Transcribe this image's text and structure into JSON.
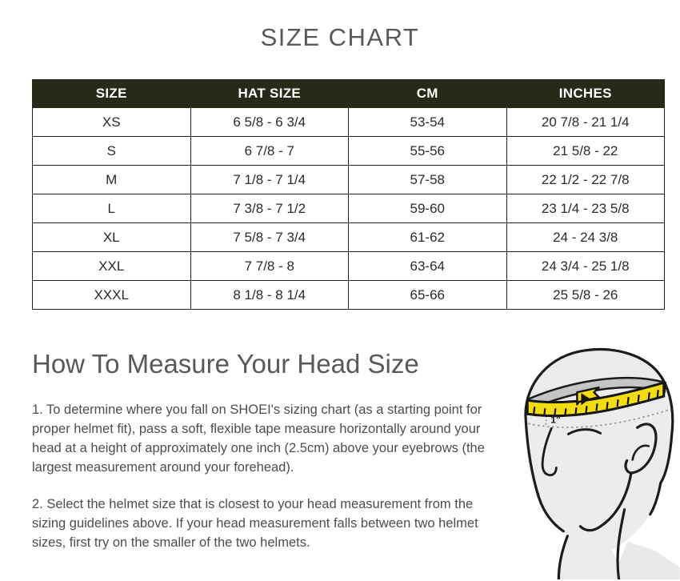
{
  "page": {
    "title": "SIZE CHART"
  },
  "size_chart": {
    "columns": [
      "SIZE",
      "HAT SIZE",
      "CM",
      "INCHES"
    ],
    "rows": [
      [
        "XS",
        "6 5/8 - 6 3/4",
        "53-54",
        "20 7/8 - 21 1/4"
      ],
      [
        "S",
        "6 7/8 - 7",
        "55-56",
        "21 5/8 - 22"
      ],
      [
        "M",
        "7 1/8 - 7 1/4",
        "57-58",
        "22 1/2 - 22 7/8"
      ],
      [
        "L",
        "7 3/8 - 7 1/2",
        "59-60",
        "23 1/4 - 23 5/8"
      ],
      [
        "XL",
        "7 5/8 - 7 3/4",
        "61-62",
        "24 - 24 3/8"
      ],
      [
        "XXL",
        "7 7/8 - 8",
        "63-64",
        "24 3/4 - 25 1/8"
      ],
      [
        "XXXL",
        "8 1/8 - 8 1/4",
        "65-66",
        "25 5/8 - 26"
      ]
    ]
  },
  "measure_section": {
    "heading": "How To Measure Your Head Size",
    "paragraphs": [
      "1. To determine where you fall on SHOEI's sizing chart (as a starting point for proper helmet fit), pass a soft, flexible tape measure horizontally around your head at a height of approximately one inch (2.5cm) above your eyebrows (the largest measurement around your forehead).",
      "2. Select the helmet size that is closest to your head measurement from the sizing guidelines above. If your head measurement falls between two helmet sizes, first try on the smaller of the two helmets."
    ],
    "illustration": {
      "inch_label": "1\"",
      "tape_color": "#f4dc12",
      "tape_far_side_color": "#c5c5c5",
      "head_fill_color": "#ececec",
      "outline_color": "#1c1c1c"
    }
  },
  "colors": {
    "table_header_bg": "#29291a",
    "table_header_text": "#ffffff",
    "heading_text": "#58595b",
    "body_text": "#4d4d4d"
  }
}
